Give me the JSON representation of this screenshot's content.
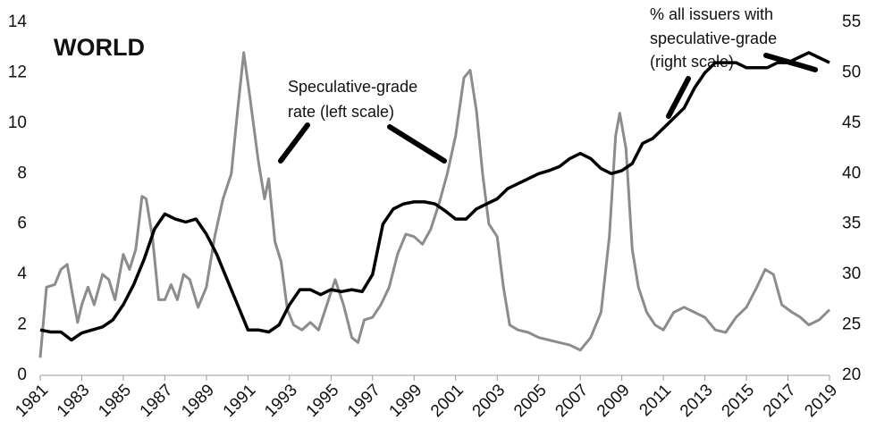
{
  "chart_data": {
    "type": "line",
    "title": "WORLD",
    "annotations": [
      "Speculative-grade",
      "rate (left scale)",
      "% all issuers with",
      "speculative-grade",
      "(right scale)"
    ],
    "xlim": [
      1981,
      2019
    ],
    "xticks": [
      1981,
      1983,
      1985,
      1987,
      1989,
      1991,
      1993,
      1995,
      1997,
      1999,
      2001,
      2003,
      2005,
      2007,
      2009,
      2011,
      2013,
      2015,
      2017,
      2019
    ],
    "ylim": [
      0,
      14
    ],
    "yticks": [
      0,
      2,
      4,
      6,
      8,
      10,
      12,
      14
    ],
    "y2lim": [
      20,
      55
    ],
    "y2ticks": [
      20,
      25,
      30,
      35,
      40,
      45,
      50,
      55
    ],
    "grid": false,
    "series": [
      {
        "name": "Speculative-grade rate (left scale)",
        "color": "#8c8c8c",
        "axis": "y",
        "x": [
          1981.0,
          1981.3,
          1981.7,
          1982.0,
          1982.3,
          1982.6,
          1982.8,
          1983.0,
          1983.3,
          1983.6,
          1984.0,
          1984.3,
          1984.6,
          1985.0,
          1985.3,
          1985.6,
          1985.9,
          1986.1,
          1986.4,
          1986.7,
          1987.0,
          1987.3,
          1987.6,
          1987.9,
          1988.2,
          1988.6,
          1989.0,
          1989.4,
          1989.8,
          1990.2,
          1990.5,
          1990.8,
          1991.1,
          1991.5,
          1991.8,
          1992.0,
          1992.3,
          1992.6,
          1992.9,
          1993.2,
          1993.6,
          1994.0,
          1994.4,
          1994.8,
          1995.2,
          1995.6,
          1996.0,
          1996.3,
          1996.6,
          1997.0,
          1997.4,
          1997.8,
          1998.2,
          1998.6,
          1999.0,
          1999.4,
          1999.8,
          2000.2,
          2000.6,
          2001.0,
          2001.4,
          2001.7,
          2002.0,
          2002.3,
          2002.6,
          2003.0,
          2003.3,
          2003.6,
          2004.0,
          2004.5,
          2005.0,
          2005.5,
          2006.0,
          2006.5,
          2007.0,
          2007.5,
          2008.0,
          2008.4,
          2008.7,
          2008.9,
          2009.2,
          2009.5,
          2009.8,
          2010.2,
          2010.6,
          2011.0,
          2011.5,
          2012.0,
          2012.5,
          2013.0,
          2013.5,
          2014.0,
          2014.5,
          2015.0,
          2015.5,
          2015.9,
          2016.3,
          2016.7,
          2017.2,
          2017.6,
          2018.0,
          2018.5,
          2019.0
        ],
        "values": [
          0.7,
          3.5,
          3.6,
          4.2,
          4.4,
          3.0,
          2.1,
          2.8,
          3.5,
          2.8,
          4.0,
          3.8,
          3.0,
          4.8,
          4.2,
          5.0,
          7.1,
          7.0,
          5.5,
          3.0,
          3.0,
          3.6,
          3.0,
          4.0,
          3.8,
          2.7,
          3.5,
          5.5,
          7.0,
          8.0,
          10.5,
          12.8,
          11.0,
          8.5,
          7.0,
          7.8,
          5.3,
          4.5,
          2.6,
          2.0,
          1.8,
          2.1,
          1.8,
          2.8,
          3.8,
          2.8,
          1.5,
          1.3,
          2.2,
          2.3,
          2.8,
          3.5,
          4.8,
          5.6,
          5.5,
          5.2,
          5.8,
          6.8,
          8.0,
          9.5,
          11.8,
          12.1,
          10.5,
          8.0,
          6.0,
          5.5,
          3.5,
          2.0,
          1.8,
          1.7,
          1.5,
          1.4,
          1.3,
          1.2,
          1.0,
          1.5,
          2.5,
          5.5,
          9.5,
          10.4,
          9.0,
          5.0,
          3.5,
          2.5,
          2.0,
          1.8,
          2.5,
          2.7,
          2.5,
          2.3,
          1.8,
          1.7,
          2.3,
          2.7,
          3.5,
          4.2,
          4.0,
          2.8,
          2.5,
          2.3,
          2.0,
          2.2,
          2.6
        ]
      },
      {
        "name": "% all issuers with speculative-grade (right scale)",
        "color": "#000000",
        "axis": "y2",
        "x": [
          1981,
          1981.5,
          1982,
          1982.5,
          1983,
          1983.5,
          1984,
          1984.5,
          1985,
          1985.5,
          1986,
          1986.5,
          1987,
          1987.5,
          1988,
          1988.5,
          1989,
          1989.5,
          1990,
          1990.5,
          1991,
          1991.5,
          1992,
          1992.5,
          1993,
          1993.5,
          1994,
          1994.5,
          1995,
          1995.5,
          1996,
          1996.5,
          1997,
          1997.5,
          1998,
          1998.5,
          1999,
          1999.5,
          2000,
          2000.5,
          2001,
          2001.5,
          2002,
          2002.5,
          2003,
          2003.5,
          2004,
          2004.5,
          2005,
          2005.5,
          2006,
          2006.5,
          2007,
          2007.5,
          2008,
          2008.5,
          2009,
          2009.5,
          2010,
          2010.5,
          2011,
          2011.5,
          2012,
          2012.5,
          2013,
          2013.5,
          2014,
          2014.5,
          2015,
          2015.5,
          2016,
          2016.5,
          2017,
          2017.5,
          2018,
          2018.5,
          2019
        ],
        "values": [
          24.5,
          24.3,
          24.3,
          23.5,
          24.2,
          24.5,
          24.8,
          25.5,
          27,
          29,
          31.5,
          34.5,
          36,
          35.5,
          35.2,
          35.5,
          34,
          32,
          29.5,
          27,
          24.5,
          24.5,
          24.3,
          25,
          27,
          28.5,
          28.5,
          28,
          28.5,
          28.3,
          28.5,
          28.3,
          30,
          35,
          36.5,
          37,
          37.2,
          37.2,
          37,
          36.3,
          35.5,
          35.5,
          36.5,
          37,
          37.5,
          38.5,
          39,
          39.5,
          40,
          40.3,
          40.7,
          41.5,
          42,
          41.5,
          40.5,
          40,
          40.3,
          41,
          43,
          43.5,
          44.5,
          45.5,
          46.5,
          48.5,
          50,
          51,
          51,
          51,
          50.5,
          50.5,
          50.5,
          51,
          51,
          51.5,
          52,
          51.5,
          51
        ]
      }
    ]
  }
}
